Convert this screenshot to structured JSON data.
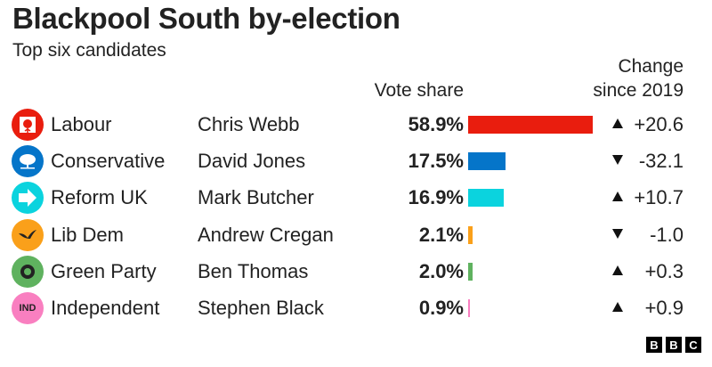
{
  "title": "Blackpool South by-election",
  "subtitle": "Top six candidates",
  "headers": {
    "vote_share": "Vote share",
    "change_line1": "Change",
    "change_line2": "since 2019"
  },
  "chart_data": {
    "type": "bar",
    "orientation": "horizontal",
    "title": "Blackpool South by-election",
    "subtitle": "Top six candidates",
    "categories": [
      "Labour",
      "Conservative",
      "Reform UK",
      "Lib Dem",
      "Green Party",
      "Independent"
    ],
    "candidates": [
      "Chris Webb",
      "David Jones",
      "Mark Butcher",
      "Andrew Cregan",
      "Ben Thomas",
      "Stephen Black"
    ],
    "values": [
      58.9,
      17.5,
      16.9,
      2.1,
      2.0,
      0.9
    ],
    "value_labels": [
      "58.9%",
      "17.5%",
      "16.9%",
      "2.1%",
      "2.0%",
      "0.9%"
    ],
    "change_since_2019": [
      20.6,
      -32.1,
      10.7,
      -1.0,
      0.3,
      0.9
    ],
    "change_labels": [
      "+20.6",
      "-32.1",
      "+10.7",
      "-1.0",
      "+0.3",
      "+0.9"
    ],
    "colors": [
      "#e91d0e",
      "#0575c9",
      "#0bd3de",
      "#faa01a",
      "#5fb25f",
      "#f97fc0"
    ],
    "xlim": [
      0,
      100
    ],
    "grid": false,
    "legend": "none"
  },
  "rows": [
    {
      "party": "Labour",
      "candidate": "Chris Webb",
      "pct": "58.9%",
      "change": "+20.6",
      "dir": "up",
      "icon": "labour-rose-icon"
    },
    {
      "party": "Conservative",
      "candidate": "David Jones",
      "pct": "17.5%",
      "change": "-32.1",
      "dir": "down",
      "icon": "conservative-tree-icon"
    },
    {
      "party": "Reform UK",
      "candidate": "Mark Butcher",
      "pct": "16.9%",
      "change": "+10.7",
      "dir": "up",
      "icon": "reform-arrow-icon"
    },
    {
      "party": "Lib Dem",
      "candidate": "Andrew Cregan",
      "pct": "2.1%",
      "change": "-1.0",
      "dir": "down",
      "icon": "libdem-bird-icon"
    },
    {
      "party": "Green Party",
      "candidate": "Ben Thomas",
      "pct": "2.0%",
      "change": "+0.3",
      "dir": "up",
      "icon": "green-globe-icon"
    },
    {
      "party": "Independent",
      "candidate": "Stephen Black",
      "pct": "0.9%",
      "change": "+0.9",
      "dir": "up",
      "icon": "independent-icon",
      "icon_text": "IND"
    }
  ],
  "logo": "BBC"
}
